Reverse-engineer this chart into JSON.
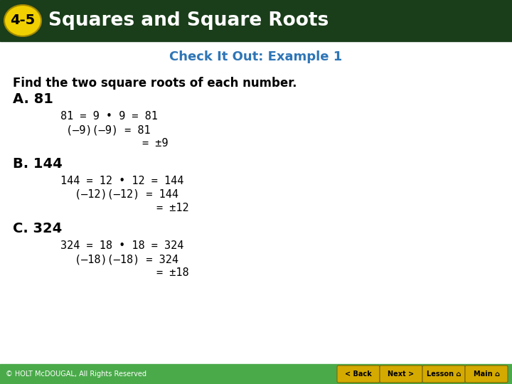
{
  "header_bg_color": "#1a3d1a",
  "header_badge_color": "#f0d000",
  "header_badge_text": "4-5",
  "header_title": "Squares and Square Roots",
  "header_text_color": "#ffffff",
  "subheader_text": "Check It Out: Example 1",
  "subheader_color": "#2e75b6",
  "body_bg_color": "#ffffff",
  "main_question": "Find the two square roots of each number.",
  "section_A_label": "A. 81",
  "section_A_lines": [
    "81 = 9 • 9 = 81",
    "(–9)(–9) = 81",
    "= ±9"
  ],
  "section_B_label": "B. 144",
  "section_B_lines": [
    "144 = 12 • 12 = 144",
    "(–12)(–12) = 144",
    "= ±12"
  ],
  "section_C_label": "C. 324",
  "section_C_lines": [
    "324 = 18 • 18 = 324",
    "(–18)(–18) = 324",
    "= ±18"
  ],
  "footer_text": "© HOLT McDOUGAL, All Rights Reserved",
  "footer_bg_color": "#4aaa4a",
  "footer_text_color": "#ffffff",
  "button_color": "#d4aa00",
  "button_text_color": "#000000",
  "buttons": [
    "< Back",
    "Next >",
    "Lesson ⌂",
    "Main ⌂"
  ]
}
